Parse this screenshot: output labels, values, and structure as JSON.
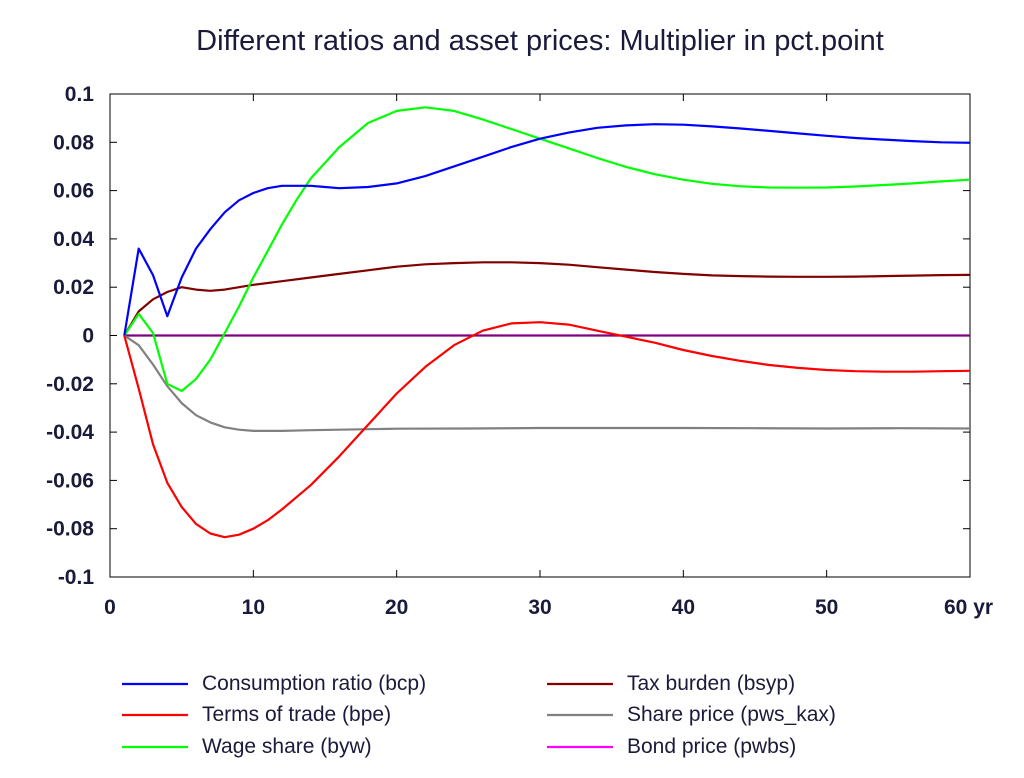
{
  "chart_data": {
    "type": "line",
    "title": "Different ratios and asset prices: Multiplier in pct.point",
    "xlabel": "",
    "ylabel": "",
    "x_unit": "yr",
    "xlim": [
      0,
      60
    ],
    "ylim": [
      -0.1,
      0.1
    ],
    "x_ticks": [
      0,
      10,
      20,
      30,
      40,
      50,
      60
    ],
    "x_tick_labels": [
      "0",
      "10",
      "20",
      "30",
      "40",
      "50",
      "60 yr"
    ],
    "y_ticks": [
      0.1,
      0.08,
      0.06,
      0.04,
      0.02,
      0,
      -0.02,
      -0.04,
      -0.06,
      -0.08,
      -0.1
    ],
    "y_tick_labels": [
      "0.1",
      "0.08",
      "0.06",
      "0.04",
      "0.02",
      "0",
      "-0.02",
      "-0.04",
      "-0.06",
      "-0.08",
      "-0.1"
    ],
    "grid": false,
    "legend_position": "bottom",
    "series": [
      {
        "name": "Consumption ratio (bcp)",
        "color": "#0000ff",
        "x": [
          1,
          2,
          3,
          4,
          5,
          6,
          7,
          8,
          9,
          10,
          11,
          12,
          13,
          14,
          15,
          16,
          18,
          20,
          22,
          24,
          26,
          28,
          30,
          32,
          34,
          36,
          38,
          40,
          42,
          44,
          46,
          48,
          50,
          52,
          54,
          56,
          58,
          60
        ],
        "y": [
          0,
          0.036,
          0.025,
          0.008,
          0.024,
          0.036,
          0.044,
          0.051,
          0.056,
          0.059,
          0.061,
          0.062,
          0.062,
          0.062,
          0.0615,
          0.061,
          0.0615,
          0.063,
          0.066,
          0.07,
          0.074,
          0.078,
          0.0815,
          0.084,
          0.086,
          0.087,
          0.0875,
          0.0873,
          0.0866,
          0.0857,
          0.0847,
          0.0837,
          0.0827,
          0.0818,
          0.0811,
          0.0805,
          0.08,
          0.0798
        ]
      },
      {
        "name": "Terms of trade (bpe)",
        "color": "#ff0000",
        "x": [
          1,
          2,
          3,
          4,
          5,
          6,
          7,
          8,
          9,
          10,
          11,
          12,
          14,
          16,
          18,
          20,
          22,
          24,
          26,
          28,
          30,
          32,
          34,
          36,
          38,
          40,
          42,
          44,
          46,
          48,
          50,
          52,
          54,
          56,
          58,
          60
        ],
        "y": [
          0,
          -0.022,
          -0.045,
          -0.061,
          -0.071,
          -0.078,
          -0.082,
          -0.0835,
          -0.0825,
          -0.08,
          -0.0765,
          -0.072,
          -0.062,
          -0.05,
          -0.037,
          -0.024,
          -0.013,
          -0.004,
          0.002,
          0.005,
          0.0055,
          0.0045,
          0.002,
          -0.0005,
          -0.003,
          -0.006,
          -0.0085,
          -0.0105,
          -0.0122,
          -0.0134,
          -0.0143,
          -0.0148,
          -0.015,
          -0.015,
          -0.0148,
          -0.0146
        ]
      },
      {
        "name": "Wage share (byw)",
        "color": "#00ff00",
        "x": [
          1,
          2,
          3,
          4,
          5,
          6,
          7,
          8,
          9,
          10,
          11,
          12,
          13,
          14,
          16,
          18,
          20,
          22,
          24,
          26,
          28,
          30,
          32,
          34,
          36,
          38,
          40,
          42,
          44,
          46,
          48,
          50,
          52,
          54,
          56,
          58,
          60
        ],
        "y": [
          0,
          0.009,
          0.001,
          -0.02,
          -0.023,
          -0.018,
          -0.01,
          0.001,
          0.012,
          0.024,
          0.035,
          0.046,
          0.056,
          0.065,
          0.078,
          0.088,
          0.093,
          0.0945,
          0.093,
          0.0895,
          0.0855,
          0.0815,
          0.0775,
          0.0735,
          0.0698,
          0.0668,
          0.0645,
          0.0628,
          0.0618,
          0.0613,
          0.0612,
          0.0613,
          0.0617,
          0.0623,
          0.063,
          0.0638,
          0.0645
        ]
      },
      {
        "name": "Tax burden (bsyp)",
        "color": "#800000",
        "x": [
          1,
          2,
          3,
          4,
          5,
          6,
          7,
          8,
          9,
          10,
          12,
          14,
          16,
          18,
          20,
          22,
          24,
          26,
          28,
          30,
          32,
          34,
          36,
          38,
          40,
          42,
          44,
          46,
          48,
          50,
          52,
          54,
          56,
          58,
          60
        ],
        "y": [
          0,
          0.01,
          0.015,
          0.018,
          0.02,
          0.019,
          0.0185,
          0.019,
          0.02,
          0.021,
          0.0225,
          0.024,
          0.0255,
          0.027,
          0.0285,
          0.0295,
          0.03,
          0.0303,
          0.0303,
          0.03,
          0.0293,
          0.0283,
          0.0273,
          0.0263,
          0.0255,
          0.0249,
          0.0246,
          0.0244,
          0.0243,
          0.0243,
          0.0244,
          0.0246,
          0.0248,
          0.025,
          0.0251
        ]
      },
      {
        "name": "Share price (pws_kax)",
        "color": "#808080",
        "x": [
          1,
          2,
          3,
          4,
          5,
          6,
          7,
          8,
          9,
          10,
          12,
          14,
          16,
          18,
          20,
          25,
          30,
          35,
          40,
          45,
          50,
          55,
          60
        ],
        "y": [
          0,
          -0.004,
          -0.012,
          -0.021,
          -0.028,
          -0.033,
          -0.036,
          -0.038,
          -0.039,
          -0.0395,
          -0.0395,
          -0.0392,
          -0.039,
          -0.0388,
          -0.0386,
          -0.0385,
          -0.0383,
          -0.0383,
          -0.0383,
          -0.0384,
          -0.0385,
          -0.0384,
          -0.0385
        ]
      },
      {
        "name": "Bond price (pwbs)",
        "color": "#ff00ff",
        "x": [
          1,
          60
        ],
        "y": [
          0,
          0
        ]
      }
    ]
  }
}
